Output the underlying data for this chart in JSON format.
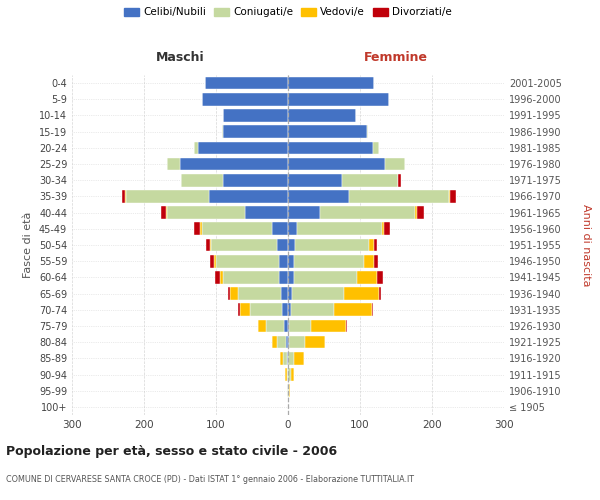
{
  "age_groups": [
    "100+",
    "95-99",
    "90-94",
    "85-89",
    "80-84",
    "75-79",
    "70-74",
    "65-69",
    "60-64",
    "55-59",
    "50-54",
    "45-49",
    "40-44",
    "35-39",
    "30-34",
    "25-29",
    "20-24",
    "15-19",
    "10-14",
    "5-9",
    "0-4"
  ],
  "birth_years": [
    "≤ 1905",
    "1906-1910",
    "1911-1915",
    "1916-1920",
    "1921-1925",
    "1926-1930",
    "1931-1935",
    "1936-1940",
    "1941-1945",
    "1946-1950",
    "1951-1955",
    "1956-1960",
    "1961-1965",
    "1966-1970",
    "1971-1975",
    "1976-1980",
    "1981-1985",
    "1986-1990",
    "1991-1995",
    "1996-2000",
    "2001-2005"
  ],
  "maschi": {
    "celibi": [
      0,
      0,
      0,
      2,
      3,
      5,
      8,
      10,
      12,
      12,
      15,
      22,
      60,
      110,
      90,
      150,
      125,
      90,
      90,
      120,
      115
    ],
    "coniugati": [
      0,
      1,
      2,
      5,
      12,
      25,
      45,
      60,
      78,
      88,
      92,
      98,
      108,
      115,
      58,
      18,
      6,
      1,
      0,
      0,
      0
    ],
    "vedovi": [
      0,
      1,
      2,
      4,
      7,
      12,
      14,
      10,
      4,
      3,
      2,
      2,
      1,
      1,
      0,
      0,
      0,
      0,
      0,
      0,
      0
    ],
    "divorziati": [
      0,
      0,
      0,
      0,
      0,
      0,
      2,
      3,
      8,
      5,
      5,
      8,
      8,
      5,
      0,
      0,
      0,
      0,
      0,
      0,
      0
    ]
  },
  "femmine": {
    "nubili": [
      0,
      0,
      0,
      0,
      2,
      2,
      4,
      6,
      8,
      8,
      10,
      12,
      45,
      85,
      75,
      135,
      118,
      110,
      95,
      140,
      120
    ],
    "coniugate": [
      0,
      1,
      4,
      8,
      22,
      30,
      60,
      72,
      88,
      98,
      102,
      118,
      132,
      138,
      78,
      28,
      8,
      1,
      0,
      0,
      0
    ],
    "vedove": [
      0,
      2,
      5,
      14,
      28,
      48,
      52,
      48,
      28,
      14,
      7,
      4,
      2,
      2,
      0,
      0,
      0,
      0,
      0,
      0,
      0
    ],
    "divorziate": [
      0,
      0,
      0,
      0,
      0,
      2,
      2,
      3,
      8,
      5,
      5,
      8,
      10,
      8,
      4,
      0,
      0,
      0,
      0,
      0,
      0
    ]
  },
  "colors": {
    "celibi": "#4472c4",
    "coniugati": "#c5d9a0",
    "vedovi": "#ffc000",
    "divorziati": "#c0000a"
  },
  "xlim": 300,
  "title": "Popolazione per età, sesso e stato civile - 2006",
  "subtitle": "COMUNE DI CERVARESE SANTA CROCE (PD) - Dati ISTAT 1° gennaio 2006 - Elaborazione TUTTITALIA.IT",
  "ylabel_left": "Fasce di età",
  "ylabel_right": "Anni di nascita",
  "xlabel_maschi": "Maschi",
  "xlabel_femmine": "Femmine",
  "bg_color": "#ffffff",
  "grid_color": "#cccccc"
}
